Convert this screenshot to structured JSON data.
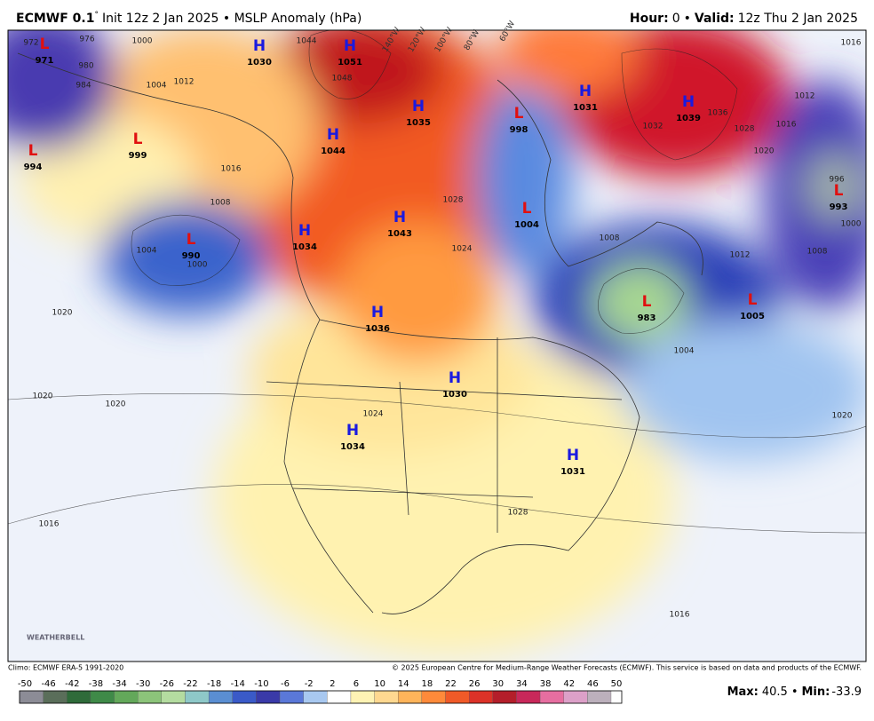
{
  "header": {
    "model": "ECMWF 0.1",
    "degree": "°",
    "subtitle": "Init 12z 2 Jan 2025 • MSLP Anomaly (hPa)",
    "hour_label": "Hour:",
    "hour": 0,
    "sep": "•",
    "valid_label": "Valid:",
    "valid": "12z Thu 2 Jan 2025"
  },
  "centers": [
    {
      "letter": "L",
      "value": 971
    },
    {
      "letter": "H",
      "value": 1030
    },
    {
      "letter": "H",
      "value": 1051
    },
    {
      "letter": "H",
      "value": 1035
    },
    {
      "letter": "L",
      "value": 998
    },
    {
      "letter": "H",
      "value": 1031
    },
    {
      "letter": "H",
      "value": 1039
    },
    {
      "letter": "L",
      "value": 999
    },
    {
      "letter": "L",
      "value": 994
    },
    {
      "letter": "H",
      "value": 1044
    },
    {
      "letter": "L",
      "value": 990
    },
    {
      "letter": "H",
      "value": 1034
    },
    {
      "letter": "H",
      "value": 1043
    },
    {
      "letter": "L",
      "value": 1004
    },
    {
      "letter": "L",
      "value": 993
    },
    {
      "letter": "L",
      "value": 983
    },
    {
      "letter": "L",
      "value": 1005
    },
    {
      "letter": "H",
      "value": 1036
    },
    {
      "letter": "H",
      "value": 1030
    },
    {
      "letter": "H",
      "value": 1034
    },
    {
      "letter": "H",
      "value": 1031
    }
  ],
  "center_colors": {
    "H": "#1a1ae0",
    "L": "#e01010"
  },
  "isobar_labels": [
    "972",
    "976",
    "980",
    "984",
    "1000",
    "1004",
    "1012",
    "1016",
    "1008",
    "1020",
    "1020",
    "1020",
    "1016",
    "1044",
    "1048",
    "1028",
    "1024",
    "1032",
    "1036",
    "1028",
    "1020",
    "1016",
    "1012",
    "1008",
    "1004",
    "1000",
    "996",
    "1000",
    "1004",
    "1008",
    "1012",
    "1020",
    "1016",
    "1024",
    "1028",
    "1016"
  ],
  "longitudes": [
    "140°W",
    "120°W",
    "100°W",
    "80°W",
    "60°W"
  ],
  "logo": "WEATHERBELL",
  "footer": {
    "climo": "Climo: ECMWF ERA-5 1991-2020",
    "copyright": "© 2025 European Centre for Medium-Range Weather Forecasts (ECMWF). This service is based on data and products of the ECMWF."
  },
  "colorbar": {
    "ticks": [
      -50,
      -46,
      -42,
      -38,
      -34,
      -30,
      -26,
      -22,
      -18,
      -14,
      -10,
      -6,
      -2,
      2,
      6,
      10,
      14,
      18,
      22,
      26,
      30,
      34,
      38,
      42,
      46,
      50
    ],
    "colors": [
      "#8c8c96",
      "#5a6e5a",
      "#2f6b3a",
      "#3f8a48",
      "#63a85a",
      "#8cc47a",
      "#b4dca0",
      "#8ec8c8",
      "#5a8ed2",
      "#3a5ac8",
      "#3a3aa8",
      "#5a78d8",
      "#a8c8f0",
      "#ffffff",
      "#fff3b4",
      "#ffd890",
      "#ffb45a",
      "#ff8a3a",
      "#f05a28",
      "#dc3228",
      "#b41e2a",
      "#c8285a",
      "#e66ea0",
      "#dca0c8",
      "#bcb0bc"
    ]
  },
  "stats": {
    "max_label": "Max:",
    "max": 40.5,
    "sep": "•",
    "min_label": "Min:",
    "min": -33.9
  }
}
